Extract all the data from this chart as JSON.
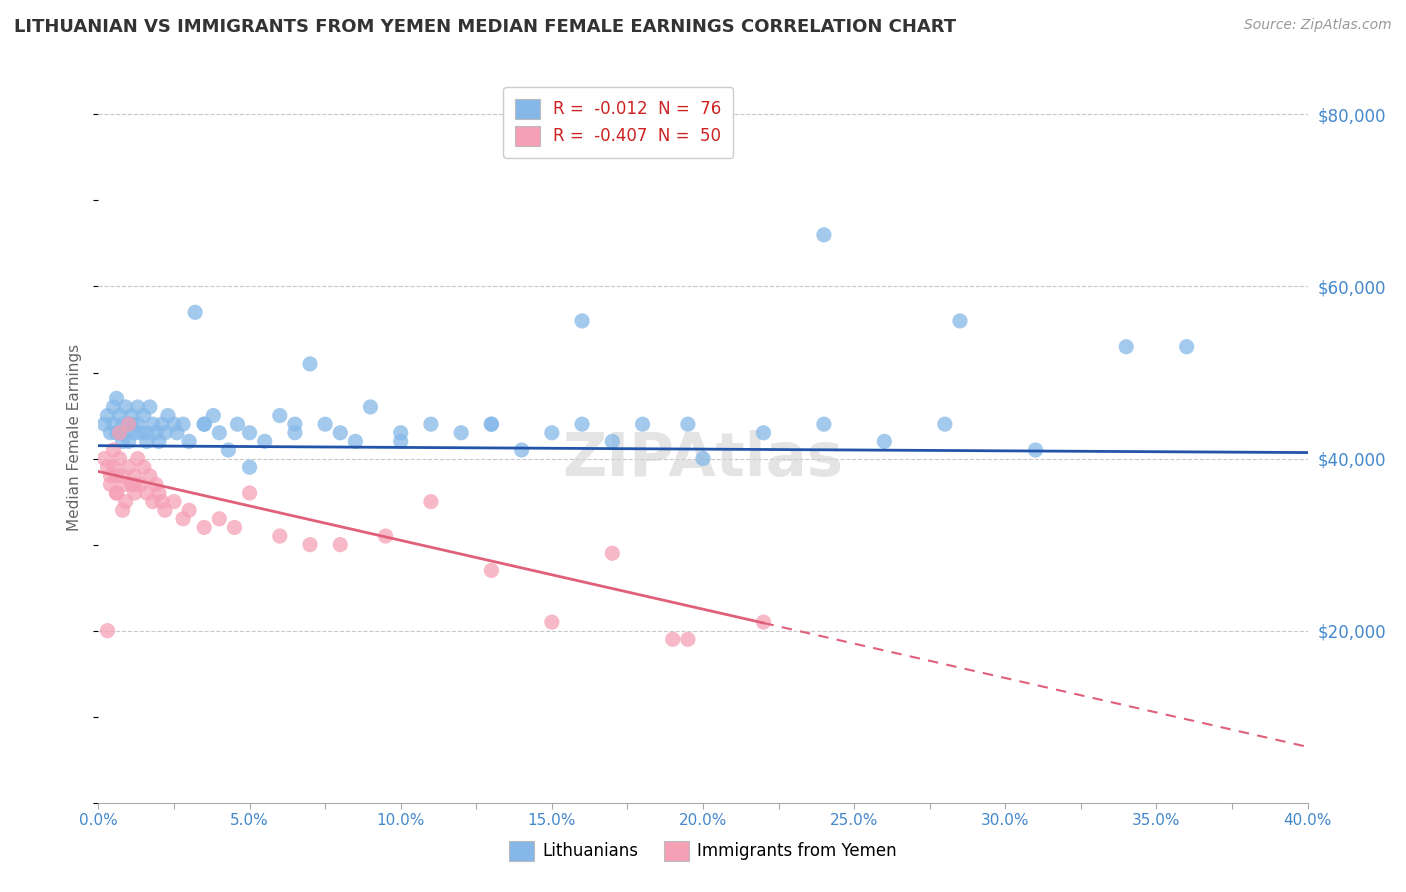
{
  "title": "LITHUANIAN VS IMMIGRANTS FROM YEMEN MEDIAN FEMALE EARNINGS CORRELATION CHART",
  "source": "Source: ZipAtlas.com",
  "ylabel": "Median Female Earnings",
  "xlim": [
    0.0,
    0.4
  ],
  "ylim": [
    0,
    85000
  ],
  "yticks": [
    20000,
    40000,
    60000,
    80000
  ],
  "ytick_labels": [
    "$20,000",
    "$40,000",
    "$60,000",
    "$80,000"
  ],
  "xtick_labels": [
    "0.0%",
    "",
    "5.0%",
    "",
    "10.0%",
    "",
    "15.0%",
    "",
    "20.0%",
    "",
    "25.0%",
    "",
    "30.0%",
    "",
    "35.0%",
    "",
    "40.0%"
  ],
  "xticks": [
    0.0,
    0.025,
    0.05,
    0.075,
    0.1,
    0.125,
    0.15,
    0.175,
    0.2,
    0.225,
    0.25,
    0.275,
    0.3,
    0.325,
    0.35,
    0.375,
    0.4
  ],
  "legend_bottom_label1": "Lithuanians",
  "legend_bottom_label2": "Immigrants from Yemen",
  "blue_color": "#85b8e8",
  "pink_color": "#f5a0b5",
  "blue_line_color": "#2255aa",
  "pink_line_color": "#e0607a",
  "title_color": "#333333",
  "axis_label_color": "#666666",
  "tick_label_color_blue": "#4488cc",
  "grid_color": "#c8c8c8",
  "R_blue": -0.012,
  "N_blue": 76,
  "R_pink": -0.407,
  "N_pink": 50,
  "blue_points_x": [
    0.002,
    0.003,
    0.004,
    0.005,
    0.005,
    0.006,
    0.006,
    0.007,
    0.007,
    0.008,
    0.008,
    0.009,
    0.009,
    0.01,
    0.01,
    0.011,
    0.011,
    0.012,
    0.013,
    0.013,
    0.014,
    0.015,
    0.016,
    0.016,
    0.017,
    0.018,
    0.019,
    0.02,
    0.021,
    0.022,
    0.023,
    0.025,
    0.026,
    0.028,
    0.03,
    0.032,
    0.035,
    0.038,
    0.04,
    0.043,
    0.046,
    0.05,
    0.055,
    0.06,
    0.065,
    0.07,
    0.075,
    0.08,
    0.09,
    0.1,
    0.11,
    0.12,
    0.13,
    0.14,
    0.15,
    0.16,
    0.17,
    0.18,
    0.2,
    0.22,
    0.24,
    0.26,
    0.28,
    0.31,
    0.34,
    0.035,
    0.05,
    0.065,
    0.085,
    0.1,
    0.13,
    0.16,
    0.195,
    0.24,
    0.285,
    0.36
  ],
  "blue_points_y": [
    44000,
    45000,
    43000,
    46000,
    44000,
    47000,
    43000,
    45000,
    43000,
    44000,
    42000,
    46000,
    43000,
    44000,
    42000,
    45000,
    44000,
    43000,
    46000,
    44000,
    43000,
    45000,
    43000,
    42000,
    46000,
    44000,
    43000,
    42000,
    44000,
    43000,
    45000,
    44000,
    43000,
    44000,
    42000,
    57000,
    44000,
    45000,
    43000,
    41000,
    44000,
    43000,
    42000,
    45000,
    43000,
    51000,
    44000,
    43000,
    46000,
    42000,
    44000,
    43000,
    44000,
    41000,
    43000,
    44000,
    42000,
    44000,
    40000,
    43000,
    44000,
    42000,
    44000,
    41000,
    53000,
    44000,
    39000,
    44000,
    42000,
    43000,
    44000,
    56000,
    44000,
    66000,
    56000,
    53000
  ],
  "pink_points_x": [
    0.002,
    0.003,
    0.004,
    0.005,
    0.005,
    0.006,
    0.006,
    0.007,
    0.008,
    0.009,
    0.009,
    0.01,
    0.011,
    0.012,
    0.012,
    0.013,
    0.014,
    0.015,
    0.016,
    0.017,
    0.018,
    0.019,
    0.02,
    0.021,
    0.022,
    0.025,
    0.028,
    0.03,
    0.035,
    0.04,
    0.045,
    0.05,
    0.06,
    0.07,
    0.08,
    0.095,
    0.11,
    0.13,
    0.15,
    0.17,
    0.19,
    0.22,
    0.003,
    0.004,
    0.006,
    0.007,
    0.008,
    0.01,
    0.012,
    0.195
  ],
  "pink_points_y": [
    40000,
    39000,
    37000,
    41000,
    39000,
    38000,
    36000,
    40000,
    38000,
    37000,
    35000,
    39000,
    37000,
    38000,
    36000,
    40000,
    37000,
    39000,
    36000,
    38000,
    35000,
    37000,
    36000,
    35000,
    34000,
    35000,
    33000,
    34000,
    32000,
    33000,
    32000,
    36000,
    31000,
    30000,
    30000,
    31000,
    35000,
    27000,
    21000,
    29000,
    19000,
    21000,
    20000,
    38000,
    36000,
    43000,
    34000,
    44000,
    37000,
    19000
  ]
}
